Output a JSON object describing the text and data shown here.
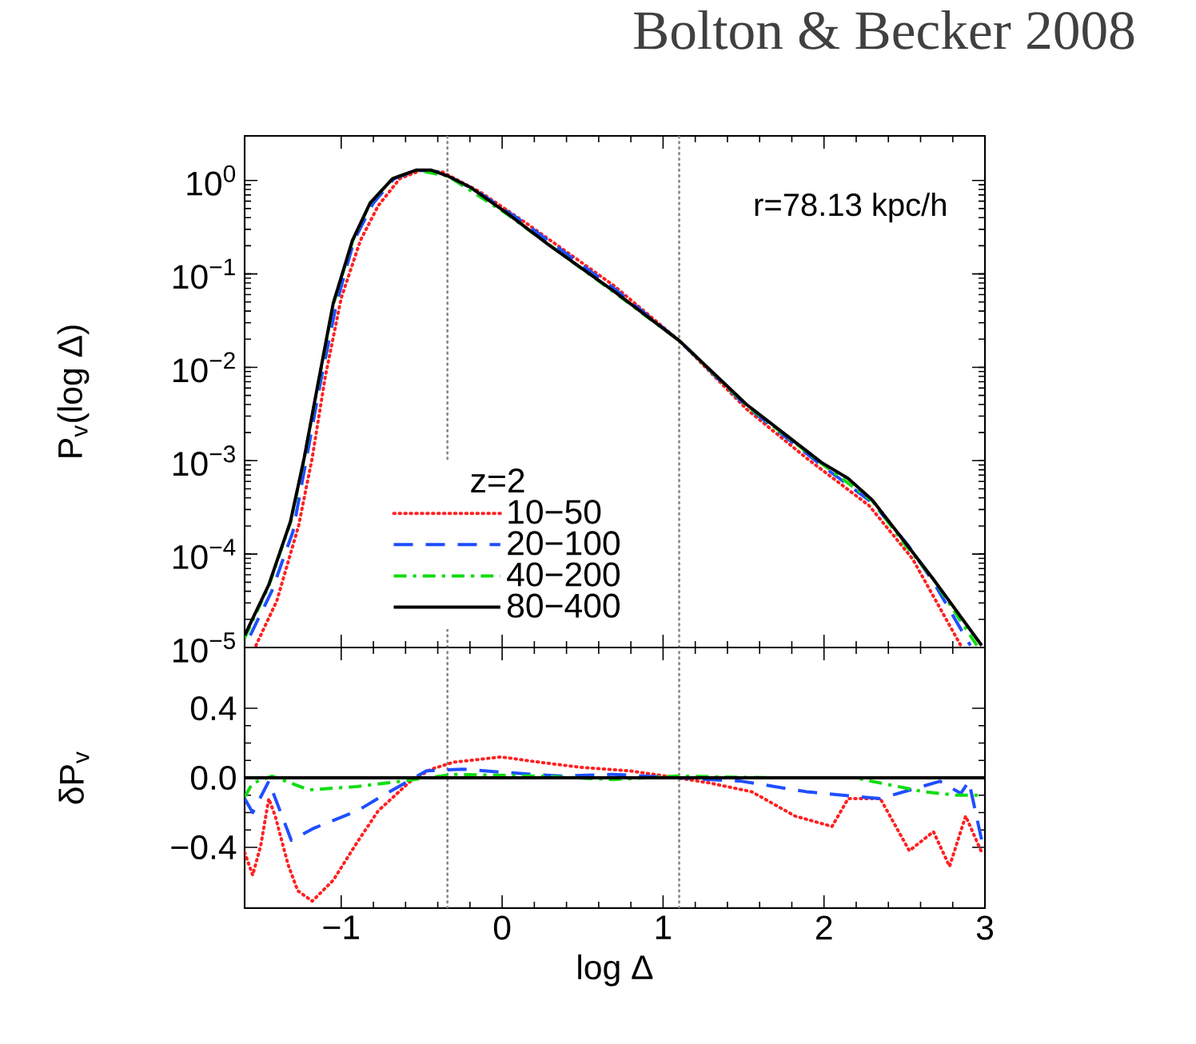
{
  "chart_data": [
    {
      "type": "line",
      "title": "Bolton & Becker 2008",
      "ylabel": "P$_{v}$(log Δ)",
      "log": "y",
      "legend": "bottom left",
      "legend_title": "z=2",
      "tick_labels": "y",
      "annotations": [
        "r=78.13 kpc/h"
      ],
      "xlim": [
        -1.6,
        3
      ],
      "xticks": [
        {
          "value": -1,
          "label": null
        },
        {
          "value": 0,
          "label": null
        },
        {
          "value": 1,
          "label": null
        },
        {
          "value": 2,
          "label": null
        },
        {
          "value": 3,
          "label": null
        }
      ],
      "ylim": [
        1e-05,
        3
      ],
      "yticks": [
        {
          "value": 1e-05,
          "label": "10$^{−5}$"
        },
        {
          "value": 0.0001,
          "label": "10$^{−4}$"
        },
        {
          "value": 0.001,
          "label": "10$^{−3}$"
        },
        {
          "value": 0.01,
          "label": "10$^{−2}$"
        },
        {
          "value": 0.1,
          "label": "10$^{−1}$"
        },
        {
          "value": 1,
          "label": "10$^{0}$"
        }
      ],
      "ref_lines": [
        {
          "axis": "x",
          "value": -0.34,
          "color": "#888888",
          "line_style": "dotted"
        },
        {
          "axis": "x",
          "value": 1.1,
          "color": "#888888",
          "line_style": "dotted"
        }
      ],
      "series": [
        {
          "name": "10−50",
          "color": "#ff2020",
          "line_style": "dotted",
          "x": [
            -1.53,
            -1.4,
            -1.265,
            -1.18,
            -1.1,
            -1.0,
            -0.88,
            -0.77,
            -0.635,
            -0.5,
            -0.37,
            -0.135,
            0.16,
            0.69,
            1.105,
            1.52,
            1.89,
            2.28,
            2.55,
            2.75,
            2.85
          ],
          "values": [
            1.05e-05,
            3.16e-05,
            0.0002,
            0.00107,
            0.00776,
            0.055,
            0.229,
            0.537,
            1.05,
            1.29,
            1.23,
            0.75,
            0.339,
            0.0759,
            0.019,
            0.00355,
            0.00107,
            0.000331,
            8.91e-05,
            2.14e-05,
            1.05e-05
          ]
        },
        {
          "name": "20−100",
          "color": "#1f4fff",
          "line_style": "dashed",
          "x": [
            -1.565,
            -1.43,
            -1.3,
            -1.215,
            -1.13,
            -1.03,
            -0.92,
            -0.8,
            -0.67,
            -0.52,
            -0.385,
            -0.17,
            0.1,
            0.69,
            1.105,
            1.52,
            1.985,
            2.3,
            2.52,
            2.68,
            2.91
          ],
          "values": [
            1.35e-05,
            4.07e-05,
            0.000174,
            0.00107,
            0.00676,
            0.0479,
            0.229,
            0.575,
            1.05,
            1.29,
            1.23,
            0.794,
            0.389,
            0.0708,
            0.019,
            0.0038,
            0.000891,
            0.000355,
            0.000126,
            5.01e-05,
            1.05e-05
          ]
        },
        {
          "name": "40−200",
          "color": "#10dd10",
          "line_style": "dashdot",
          "x": [
            -1.6,
            -1.45,
            -1.315,
            -1.23,
            -1.15,
            -1.05,
            -0.93,
            -0.82,
            -0.68,
            -0.535,
            -0.335,
            0.03,
            0.69,
            1.105,
            1.52,
            1.985,
            2.3,
            2.49,
            2.68,
            2.95
          ],
          "values": [
            1.26e-05,
            4.57e-05,
            0.000219,
            0.00105,
            0.00575,
            0.0468,
            0.224,
            0.575,
            1.05,
            1.29,
            1.11,
            0.437,
            0.0646,
            0.019,
            0.00389,
            0.000933,
            0.000372,
            0.000135,
            5.37e-05,
            1.05e-05
          ]
        },
        {
          "name": "80−400",
          "color": "#000000",
          "line_style": "solid",
          "x": [
            -1.6,
            -1.45,
            -1.315,
            -1.23,
            -1.15,
            -1.05,
            -0.93,
            -0.82,
            -0.68,
            -0.535,
            -0.44,
            -0.335,
            -0.2,
            0.03,
            0.29,
            0.69,
            1.105,
            1.52,
            1.985,
            2.15,
            2.3,
            2.48,
            2.68,
            2.98
          ],
          "values": [
            1.35e-05,
            4.68e-05,
            0.000224,
            0.00107,
            0.00589,
            0.0479,
            0.229,
            0.575,
            1.05,
            1.29,
            1.29,
            1.11,
            0.851,
            0.447,
            0.204,
            0.066,
            0.019,
            0.00398,
            0.000955,
            0.000646,
            0.00038,
            0.000151,
            5.37e-05,
            1.05e-05
          ]
        }
      ]
    },
    {
      "type": "line",
      "xlabel": "log Δ",
      "ylabel": "δP$_{v}$",
      "xlim": [
        -1.6,
        3
      ],
      "xticks": [
        {
          "value": -1,
          "label": "−1"
        },
        0,
        1,
        2,
        3
      ],
      "ylim": [
        -0.75,
        0.75
      ],
      "yticks": [
        {
          "value": -0.4,
          "label": "−0.4"
        },
        {
          "value": 0,
          "label": "0.0"
        },
        0.4
      ],
      "ref_lines": [
        {
          "axis": "x",
          "value": -0.34,
          "color": "#888888",
          "line_style": "dotted"
        },
        {
          "axis": "x",
          "value": 1.1,
          "color": "#888888",
          "line_style": "dotted"
        }
      ],
      "series": [
        {
          "color": "#ff2020",
          "line_style": "dotted",
          "x": [
            -1.6,
            -1.55,
            -1.5,
            -1.45,
            -1.41,
            -1.33,
            -1.27,
            -1.18,
            -1.05,
            -0.9,
            -0.77,
            -0.57,
            -0.44,
            -0.3,
            -0.005,
            0.23,
            0.49,
            0.79,
            1.09,
            1.29,
            1.55,
            1.82,
            2.05,
            2.15,
            2.35,
            2.53,
            2.68,
            2.78,
            2.88,
            2.98
          ],
          "values": [
            -0.43,
            -0.56,
            -0.39,
            -0.12,
            -0.22,
            -0.5,
            -0.65,
            -0.71,
            -0.59,
            -0.37,
            -0.19,
            -0.02,
            0.05,
            0.09,
            0.12,
            0.09,
            0.06,
            0.04,
            0.0,
            -0.03,
            -0.08,
            -0.22,
            -0.28,
            -0.12,
            -0.12,
            -0.42,
            -0.31,
            -0.51,
            -0.22,
            -0.43
          ]
        },
        {
          "color": "#1f4fff",
          "line_style": "dashed",
          "x": [
            -1.6,
            -1.55,
            -1.45,
            -1.31,
            -1.17,
            -0.9,
            -0.7,
            -0.47,
            -0.24,
            0.03,
            0.36,
            0.69,
            1.09,
            1.49,
            1.89,
            2.35,
            2.72,
            2.85,
            2.9,
            2.98
          ],
          "values": [
            -0.12,
            -0.2,
            -0.02,
            -0.36,
            -0.29,
            -0.19,
            -0.08,
            0.04,
            0.05,
            0.03,
            0.01,
            0.02,
            0.0,
            -0.02,
            -0.08,
            -0.12,
            -0.02,
            -0.09,
            -0.02,
            -0.36
          ]
        },
        {
          "color": "#10dd10",
          "line_style": "dashdot",
          "x": [
            -1.6,
            -1.55,
            -1.43,
            -1.2,
            -0.9,
            -0.63,
            -0.3,
            0.23,
            0.69,
            1.09,
            1.69,
            2.19,
            2.62,
            2.82,
            2.98
          ],
          "values": [
            -0.11,
            -0.03,
            0.01,
            -0.07,
            -0.05,
            -0.02,
            0.02,
            0.01,
            -0.01,
            0.01,
            0.0,
            0.0,
            -0.08,
            -0.1,
            -0.1
          ]
        },
        {
          "color": "#000000",
          "line_style": "solid",
          "x": [
            -1.6,
            3
          ],
          "values": [
            0,
            0
          ]
        }
      ]
    }
  ]
}
